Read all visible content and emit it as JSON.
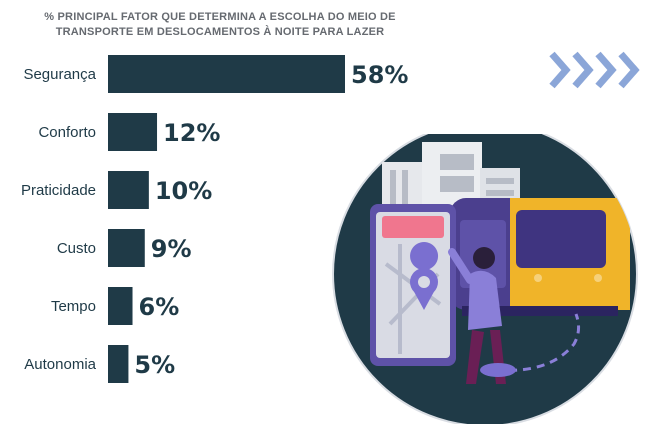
{
  "chart_data": {
    "type": "bar",
    "orientation": "horizontal",
    "title": "% PRINCIPAL FATOR QUE DETERMINA A ESCOLHA DO MEIO DE TRANSPORTE EM DESLOCAMENTOS À NOITE PARA LAZER",
    "categories": [
      "Segurança",
      "Conforto",
      "Praticidade",
      "Custo",
      "Tempo",
      "Autonomia"
    ],
    "values": [
      58,
      12,
      10,
      9,
      6,
      5
    ],
    "value_labels": [
      "58%",
      "12%",
      "10%",
      "9%",
      "6%",
      "5%"
    ],
    "xlim": [
      0,
      58
    ],
    "grid": false,
    "legend": "none"
  },
  "colors": {
    "bar": "#1f3a47",
    "chevron": "#8ba6d8",
    "circle": "#1f3a47"
  },
  "icons": [
    "chevrons-right-icon",
    "city-bus-illustration"
  ]
}
